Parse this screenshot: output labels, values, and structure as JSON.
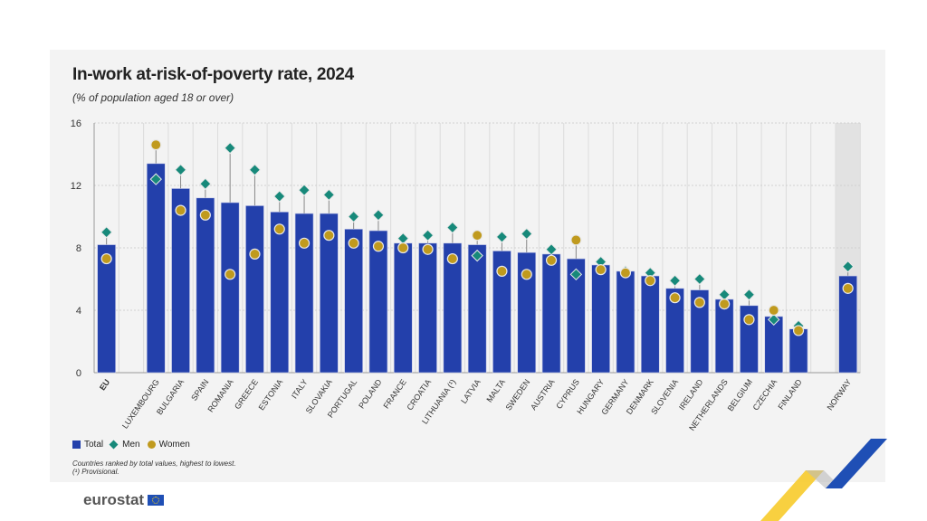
{
  "chart_data": {
    "type": "bar",
    "title": "In-work at-risk-of-poverty rate, 2024",
    "subtitle": "(% of population aged 18 or over)",
    "ylim": [
      0,
      16
    ],
    "yticks": [
      0,
      4,
      8,
      12,
      16
    ],
    "grid": true,
    "legend_placement": "bottom-left",
    "categories": [
      "EU",
      "LUXEMBOURG",
      "BULGARIA",
      "SPAIN",
      "ROMANIA",
      "GREECE",
      "ESTONIA",
      "ITALY",
      "SLOVAKIA",
      "PORTUGAL",
      "POLAND",
      "FRANCE",
      "CROATIA",
      "LITHUANIA (¹)",
      "LATVIA",
      "MALTA",
      "SWEDEN",
      "AUSTRIA",
      "CYPRUS",
      "HUNGARY",
      "GERMANY",
      "DENMARK",
      "SLOVENIA",
      "IRELAND",
      "NETHERLANDS",
      "BELGIUM",
      "CZECHIA",
      "FINLAND",
      "NORWAY"
    ],
    "series": [
      {
        "name": "Total",
        "marker": "bar",
        "color": "#2340ab",
        "values": [
          8.2,
          13.4,
          11.8,
          11.2,
          10.9,
          10.7,
          10.3,
          10.2,
          10.2,
          9.2,
          9.1,
          8.3,
          8.3,
          8.3,
          8.2,
          7.8,
          7.7,
          7.6,
          7.3,
          6.9,
          6.5,
          6.2,
          5.4,
          5.3,
          4.7,
          4.3,
          3.6,
          2.8,
          6.2
        ]
      },
      {
        "name": "Men",
        "marker": "diamond",
        "color": "#17897a",
        "values": [
          9.0,
          12.4,
          13.0,
          12.1,
          14.4,
          13.0,
          11.3,
          11.7,
          11.4,
          10.0,
          10.1,
          8.6,
          8.8,
          9.3,
          7.5,
          8.7,
          8.9,
          7.9,
          6.3,
          7.1,
          6.5,
          6.4,
          5.9,
          6.0,
          5.0,
          5.0,
          3.4,
          3.0,
          6.8
        ]
      },
      {
        "name": "Women",
        "marker": "circle",
        "color": "#c09a1e",
        "values": [
          7.3,
          14.6,
          10.4,
          10.1,
          6.3,
          7.6,
          9.2,
          8.3,
          8.8,
          8.3,
          8.1,
          8.0,
          7.9,
          7.3,
          8.8,
          6.5,
          6.3,
          7.2,
          8.5,
          6.6,
          6.4,
          5.9,
          4.8,
          4.5,
          4.4,
          3.4,
          4.0,
          2.7,
          5.4
        ]
      }
    ],
    "notes": [
      "Countries ranked by total values, highest to lowest.",
      "(¹) Provisional."
    ]
  },
  "brand": "eurostat"
}
